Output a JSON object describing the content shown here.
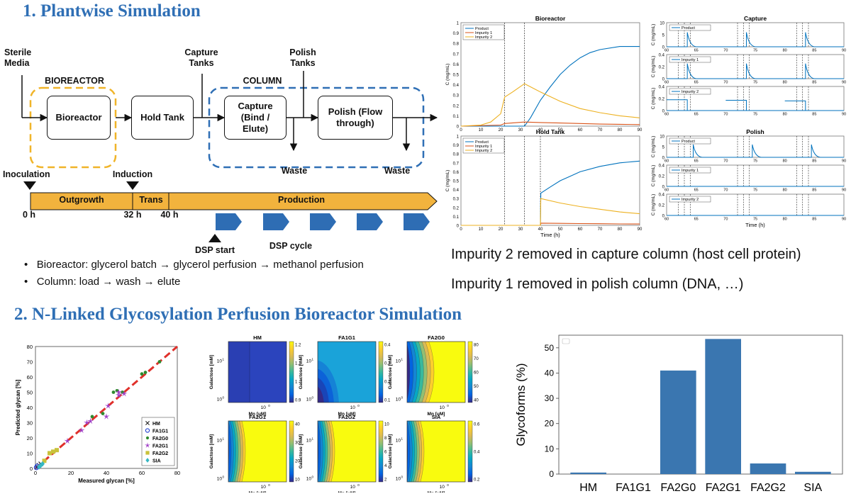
{
  "section1": {
    "title": "1. Plantwise Simulation",
    "labels": {
      "sterile_media": "Sterile\nMedia",
      "bioreactor_group": "BIOREACTOR",
      "column_group": "COLUMN",
      "capture_tanks": "Capture\nTanks",
      "polish_tanks": "Polish\nTanks",
      "waste1": "Waste",
      "waste2": "Waste"
    },
    "boxes": {
      "bioreactor": "Bioreactor",
      "hold_tank": "Hold Tank",
      "capture": "Capture\n(Bind /\nElute)",
      "polish": "Polish (Flow\nthrough)"
    },
    "timeline": {
      "inoculation": "Inoculation",
      "induction": "Induction",
      "outgrowth": "Outgrowth",
      "trans": "Trans",
      "production": "Production",
      "t0": "0 h",
      "t32": "32 h",
      "t40": "40 h",
      "dsp_start": "DSP start",
      "dsp_cycle": "DSP cycle"
    },
    "bullets": [
      "Bioreactor: glycerol batch → glycerol perfusion → methanol perfusion",
      "Column: load → wash → elute"
    ],
    "notes": [
      "Impurity 2 removed in capture column (host cell protein)",
      "Impurity 1 removed in polish column (DNA, …)"
    ]
  },
  "section2": {
    "title": "2. N-Linked Glycosylation Perfusion Bioreactor  Simulation"
  },
  "colors": {
    "title_blue": "#2f6fb5",
    "orange_dash": "#f0b429",
    "blue_dash": "#2f6fb5",
    "timeline_fill": "#f2b33d",
    "chevron_fill": "#2e6db4",
    "product": "#0072BD",
    "impurity1": "#D95319",
    "impurity2": "#EDB120",
    "bar": "#3a76b0"
  },
  "chart_data": [
    {
      "type": "line",
      "title": "Bioreactor",
      "ylabel": "C (mg/mL)",
      "xlim": [
        0,
        90
      ],
      "ylim": [
        0,
        1
      ],
      "xticks": [
        0,
        10,
        20,
        30,
        40,
        50,
        60,
        70,
        80,
        90
      ],
      "yticks": [
        0,
        0.1,
        0.2,
        0.3,
        0.4,
        0.5,
        0.6,
        0.7,
        0.8,
        0.9,
        1
      ],
      "legend": [
        "Product",
        "Impurity 1",
        "Impurity 2"
      ],
      "vlines": [
        22,
        32
      ],
      "series": [
        {
          "name": "Product",
          "x": [
            0,
            32,
            35,
            40,
            45,
            50,
            55,
            60,
            65,
            70,
            80,
            90
          ],
          "y": [
            0,
            0,
            0.08,
            0.25,
            0.38,
            0.5,
            0.59,
            0.66,
            0.71,
            0.74,
            0.77,
            0.77
          ]
        },
        {
          "name": "Impurity 1",
          "x": [
            0,
            20,
            22,
            32,
            40,
            50,
            60,
            70,
            80,
            90
          ],
          "y": [
            0,
            0.01,
            0.025,
            0.04,
            0.035,
            0.03,
            0.025,
            0.02,
            0.018,
            0.015
          ]
        },
        {
          "name": "Impurity 2",
          "x": [
            0,
            10,
            15,
            20,
            22,
            26,
            32,
            40,
            50,
            60,
            70,
            80,
            90
          ],
          "y": [
            0,
            0.01,
            0.04,
            0.12,
            0.28,
            0.33,
            0.41,
            0.33,
            0.24,
            0.17,
            0.13,
            0.1,
            0.08
          ]
        }
      ]
    },
    {
      "type": "line",
      "title": "Hold Tank",
      "ylabel": "C (mg/mL)",
      "xlabel": "Time (h)",
      "xlim": [
        0,
        90
      ],
      "ylim": [
        0,
        1
      ],
      "xticks": [
        0,
        10,
        20,
        30,
        40,
        50,
        60,
        70,
        80,
        90
      ],
      "yticks": [
        0,
        0.1,
        0.2,
        0.3,
        0.4,
        0.5,
        0.6,
        0.7,
        0.8,
        0.9,
        1
      ],
      "legend": [
        "Product",
        "Impurity 1",
        "Impurity 2"
      ],
      "vlines": [
        22,
        32,
        40
      ],
      "series": [
        {
          "name": "Product",
          "x": [
            0,
            40,
            40.2,
            45,
            50,
            55,
            60,
            70,
            80,
            90
          ],
          "y": [
            0,
            0,
            0.36,
            0.43,
            0.5,
            0.55,
            0.6,
            0.66,
            0.7,
            0.72
          ]
        },
        {
          "name": "Impurity 1",
          "x": [
            0,
            40,
            40.2,
            50,
            60,
            70,
            80,
            90
          ],
          "y": [
            0,
            0,
            0.025,
            0.022,
            0.02,
            0.018,
            0.016,
            0.015
          ]
        },
        {
          "name": "Impurity 2",
          "x": [
            0,
            40,
            40.2,
            50,
            60,
            70,
            80,
            90
          ],
          "y": [
            0,
            0,
            0.3,
            0.25,
            0.21,
            0.18,
            0.15,
            0.13
          ]
        }
      ]
    },
    {
      "type": "line",
      "title": "Capture",
      "xlim": [
        60,
        90
      ],
      "xticks": [
        60,
        65,
        70,
        75,
        80,
        85,
        90
      ],
      "panels": [
        {
          "legend": "Product",
          "ylabel": "C (mg/mL)",
          "ylim": [
            0,
            10
          ],
          "yticks": [
            0,
            5,
            10
          ],
          "peaks": [
            {
              "x": 63.5,
              "y": 6
            },
            {
              "x": 73.5,
              "y": 6
            },
            {
              "x": 83.5,
              "y": 6
            }
          ]
        },
        {
          "legend": "Impurity 1",
          "ylabel": "C (mg/mL)",
          "ylim": [
            0,
            0.4
          ],
          "yticks": [
            0,
            0.2,
            0.4
          ],
          "peaks": [
            {
              "x": 63.5,
              "y": 0.25
            },
            {
              "x": 73.5,
              "y": 0.25
            },
            {
              "x": 83.5,
              "y": 0.25
            }
          ]
        },
        {
          "legend": "Impurity 2",
          "ylabel": "C (mg/mL)",
          "ylim": [
            0,
            0.4
          ],
          "yticks": [
            0,
            0.2,
            0.4
          ],
          "steps": [
            {
              "x0": 60,
              "x1": 63.5,
              "y": 0.18
            },
            {
              "x0": 70,
              "x1": 73.5,
              "y": 0.17
            },
            {
              "x0": 80,
              "x1": 83.5,
              "y": 0.16
            }
          ]
        }
      ],
      "vlines": [
        62,
        63,
        64,
        72,
        73,
        74,
        82,
        83,
        84
      ]
    },
    {
      "type": "line",
      "title": "Polish",
      "xlabel": "Time (h)",
      "xlim": [
        60,
        90
      ],
      "xticks": [
        60,
        65,
        70,
        75,
        80,
        85,
        90
      ],
      "panels": [
        {
          "legend": "Product",
          "ylabel": "C (mg/mL)",
          "ylim": [
            0,
            10
          ],
          "yticks": [
            0,
            5,
            10
          ],
          "peaks": [
            {
              "x": 64.5,
              "y": 6
            },
            {
              "x": 74.5,
              "y": 6
            },
            {
              "x": 84.5,
              "y": 6
            }
          ]
        },
        {
          "legend": "Impurity 1",
          "ylabel": "C (mg/mL)",
          "ylim": [
            0,
            0.4
          ],
          "yticks": [
            0,
            0.2,
            0.4
          ],
          "peaks": []
        },
        {
          "legend": "Impurity 2",
          "ylabel": "C (mg/mL)",
          "ylim": [
            0,
            0.4
          ],
          "yticks": [
            0,
            0.2,
            0.4
          ],
          "peaks": []
        }
      ],
      "vlines": [
        62,
        63,
        64,
        72,
        73,
        74,
        82,
        83,
        84
      ]
    },
    {
      "type": "scatter",
      "xlabel": "Measured glycan [%]",
      "ylabel": "Predicted glycan [%]",
      "xlim": [
        0,
        80
      ],
      "ylim": [
        0,
        80
      ],
      "xticks": [
        0,
        20,
        40,
        60,
        80
      ],
      "yticks": [
        0,
        10,
        20,
        30,
        40,
        50,
        60,
        70,
        80
      ],
      "legend": [
        "HM",
        "FA1G1",
        "FA2G0",
        "FA2G1",
        "FA2G2",
        "SIA"
      ],
      "series": [
        {
          "name": "HM",
          "points": [
            [
              1,
              1
            ],
            [
              2,
              2
            ],
            [
              3,
              3
            ]
          ]
        },
        {
          "name": "FA1G1",
          "points": [
            [
              0.5,
              0.5
            ],
            [
              1,
              1.5
            ]
          ]
        },
        {
          "name": "FA2G0",
          "points": [
            [
              32,
              34
            ],
            [
              38,
              36
            ],
            [
              44,
              50
            ],
            [
              46,
              51
            ],
            [
              49,
              50
            ],
            [
              60,
              62
            ],
            [
              62,
              63
            ],
            [
              70,
              70
            ]
          ]
        },
        {
          "name": "FA2G1",
          "points": [
            [
              18,
              18
            ],
            [
              26,
              25
            ],
            [
              29,
              30
            ],
            [
              31,
              31
            ],
            [
              40,
              34
            ],
            [
              41,
              41
            ],
            [
              47,
              48
            ],
            [
              50,
              49
            ],
            [
              47,
              50
            ]
          ]
        },
        {
          "name": "FA2G2",
          "points": [
            [
              8,
              10
            ],
            [
              10,
              11
            ],
            [
              12,
              12
            ],
            [
              5,
              5
            ]
          ]
        },
        {
          "name": "SIA",
          "points": [
            [
              2,
              1
            ],
            [
              3,
              2
            ],
            [
              4,
              3
            ]
          ]
        }
      ]
    },
    {
      "type": "heatmap",
      "panels": [
        {
          "title": "HM",
          "cbar": [
            "1.2",
            "1.1",
            "1",
            "0.9"
          ]
        },
        {
          "title": "FA1G1",
          "cbar": [
            "0.4",
            "0.3",
            "0.2",
            "0.1"
          ]
        },
        {
          "title": "FA2G0",
          "cbar": [
            "80",
            "70",
            "60",
            "50",
            "40"
          ]
        },
        {
          "title": "FA2G1",
          "cbar": [
            "40",
            "30",
            "20",
            "10"
          ]
        },
        {
          "title": "FA2G2",
          "cbar": [
            "10",
            "8",
            "6",
            "4",
            "2"
          ]
        },
        {
          "title": "SIA",
          "cbar": [
            "0.6",
            "0.4",
            "0.2"
          ]
        }
      ],
      "xlabel": "Mn [uM]",
      "ylabel": "Galactose [mM]",
      "xtick": "10",
      "xtick_exp": "0",
      "yticks": [
        {
          "base": "10",
          "exp": "1"
        },
        {
          "base": "10",
          "exp": "0"
        }
      ]
    },
    {
      "type": "bar",
      "ylabel": "Glycoforms (%)",
      "categories": [
        "HM",
        "FA1G1",
        "FA2G0",
        "FA2G1",
        "FA2G2",
        "SIA"
      ],
      "values": [
        0.6,
        0,
        41,
        53.5,
        4.2,
        0.9
      ],
      "ylim": [
        0,
        55
      ],
      "yticks": [
        0,
        10,
        20,
        30,
        40,
        50
      ]
    }
  ]
}
